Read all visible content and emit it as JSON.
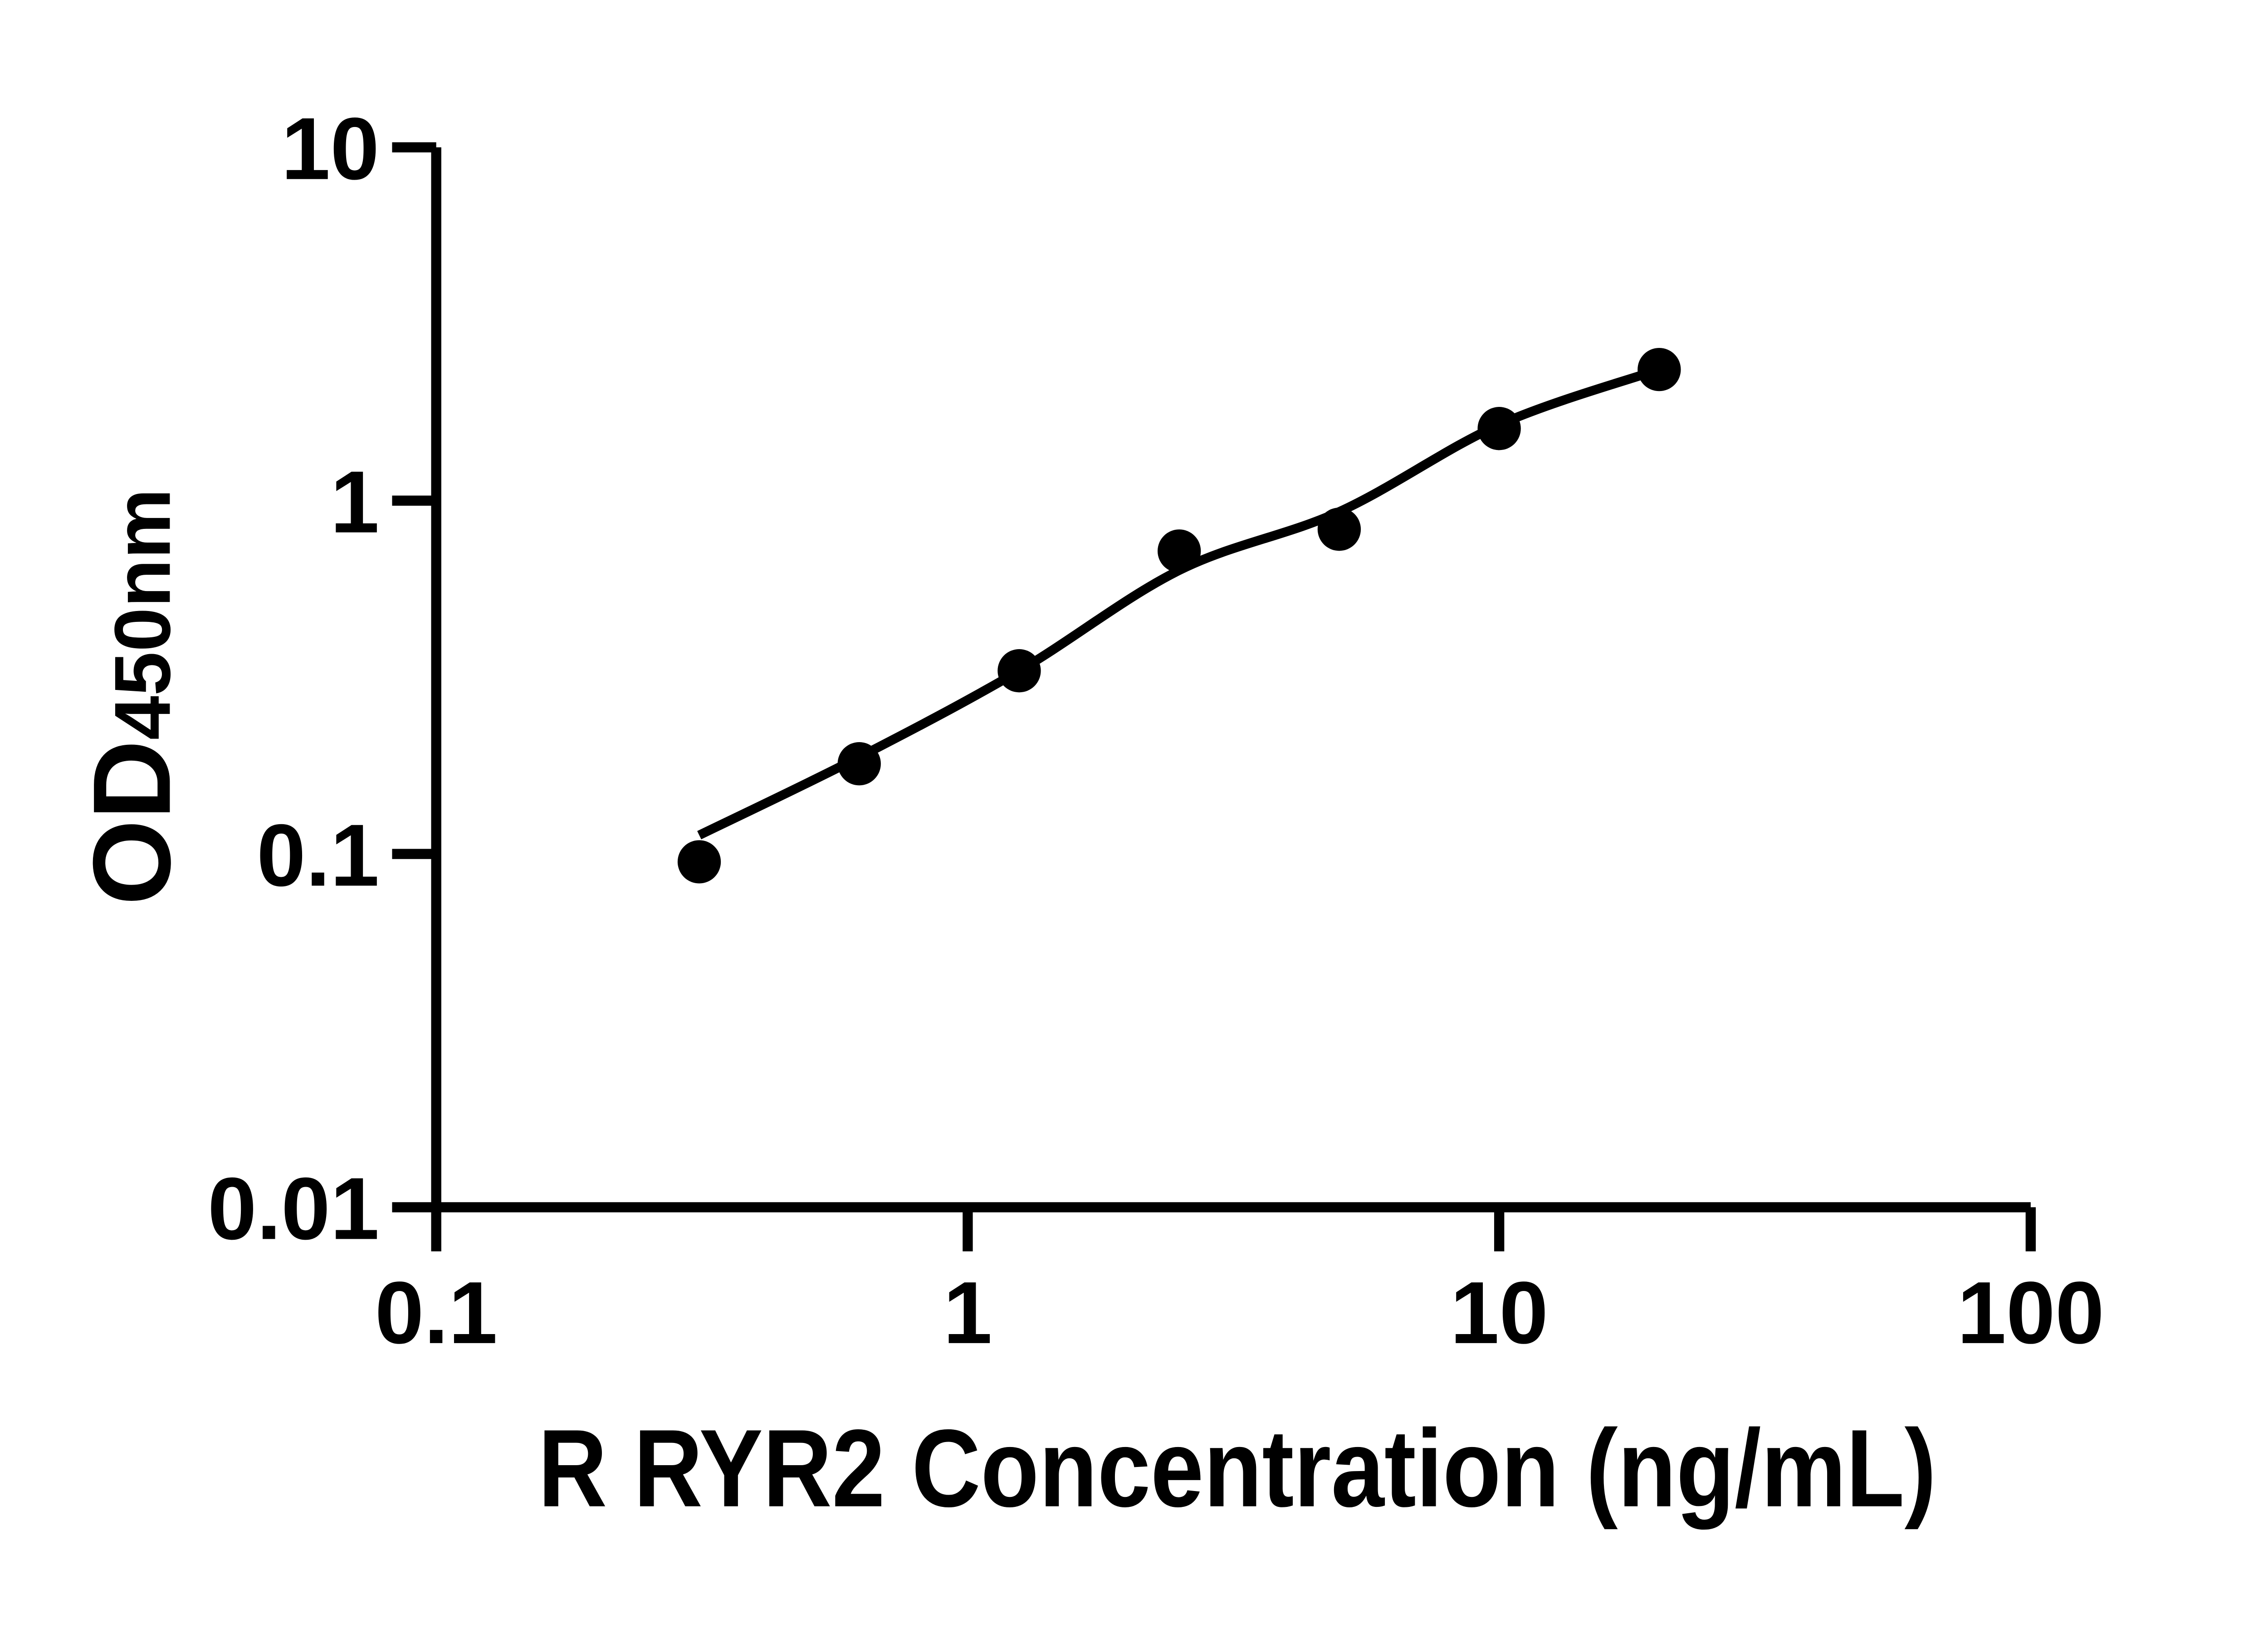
{
  "figure": {
    "description": "ELISA standard curve, log-log scatter plot with fitted curve"
  },
  "chart_data": {
    "type": "scatter",
    "title": "",
    "xlabel": "R RYR2 Concentration (ng/mL)",
    "ylabel_main": "OD",
    "ylabel_sub": "450nm",
    "x_scale": "log10",
    "y_scale": "log10",
    "xlim": [
      0.1,
      100
    ],
    "ylim": [
      0.01,
      10
    ],
    "x_tick_values": [
      0.1,
      1,
      10,
      100
    ],
    "x_tick_labels": [
      "0.1",
      "1",
      "10",
      "100"
    ],
    "y_tick_values": [
      10,
      1,
      0.1,
      0.01
    ],
    "y_tick_labels": [
      "10",
      "1",
      "0.1",
      "0.01"
    ],
    "grid": false,
    "legend_position": "none",
    "marker_color": "#000000",
    "line_color": "#000000",
    "axis_color": "#000000",
    "background_color": "#ffffff",
    "points": [
      {
        "x": 0.3125,
        "y": 0.095
      },
      {
        "x": 0.625,
        "y": 0.18
      },
      {
        "x": 1.25,
        "y": 0.33
      },
      {
        "x": 2.5,
        "y": 0.72
      },
      {
        "x": 5,
        "y": 0.83
      },
      {
        "x": 10,
        "y": 1.6
      },
      {
        "x": 20,
        "y": 2.35
      }
    ],
    "fit_curve_points": [
      {
        "x": 0.3125,
        "y": 0.113
      },
      {
        "x": 0.625,
        "y": 0.188
      },
      {
        "x": 1.25,
        "y": 0.33
      },
      {
        "x": 2.5,
        "y": 0.635
      },
      {
        "x": 5,
        "y": 0.93
      },
      {
        "x": 10,
        "y": 1.64
      },
      {
        "x": 20,
        "y": 2.35
      }
    ]
  }
}
